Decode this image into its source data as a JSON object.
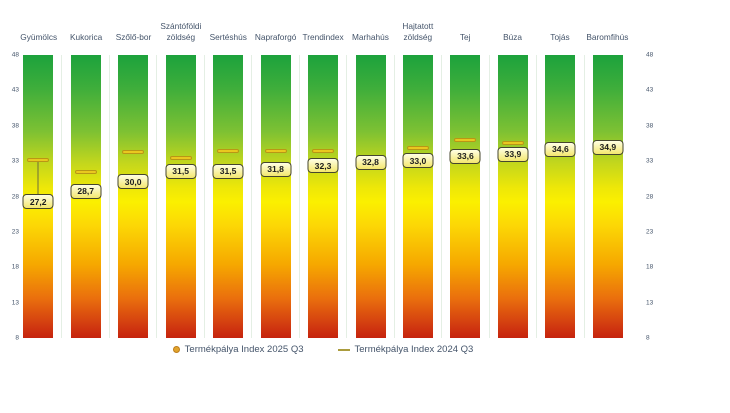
{
  "legend": {
    "item_2025": "Termékpálya Index 2025 Q3",
    "item_2024": "Termékpálya Index 2024 Q3"
  },
  "colors": {
    "text": "#44546a",
    "bar_gradient_top_green": "#1ca23c",
    "bar_gradient_mid_yellow": "#fbf000",
    "bar_gradient_bottom_red": "#c6230e",
    "marker_2025_dot": "#e2a42c",
    "marker_2024_dash": "#e9c81f",
    "value_label_fill": "#f8ef9a",
    "value_label_border": "#45452e",
    "column_separator": "#e4efe4"
  },
  "chart_data": {
    "type": "bar",
    "title": "",
    "categories": [
      "Gyümölcs",
      "Kukorica",
      "Szőlő-bor",
      "Szántóföldi zöldség",
      "Sertéshús",
      "Napraforgó",
      "Trendindex",
      "Marhahús",
      "Hajtatott zöldség",
      "Tej",
      "Búza",
      "Tojás",
      "Baromfihús"
    ],
    "series": [
      {
        "name": "Termékpálya Index 2025 Q3",
        "marker": "dot",
        "values": [
          27.2,
          28.7,
          30.0,
          31.5,
          31.5,
          31.8,
          32.3,
          32.8,
          33.0,
          33.6,
          33.9,
          34.6,
          34.9
        ],
        "data_labels": [
          "27,2",
          "28,7",
          "30,0",
          "31,5",
          "31,5",
          "31,8",
          "32,3",
          "32,8",
          "33,0",
          "33,6",
          "33,9",
          "34,6",
          "34,9"
        ]
      },
      {
        "name": "Termékpálya Index 2024 Q3",
        "marker": "dash",
        "note": "values estimated from marker positions; null = marker hidden behind 2025 data label",
        "values": [
          33.2,
          31.5,
          34.3,
          33.5,
          34.5,
          34.5,
          34.4,
          null,
          34.8,
          36.0,
          35.6,
          null,
          null
        ]
      }
    ],
    "ylim": [
      8,
      48
    ],
    "y_ticks": [
      48,
      43,
      38,
      33,
      28,
      23,
      18,
      13,
      8
    ],
    "y_axis_sides": [
      "left",
      "right"
    ],
    "grid": "vertical category separators only",
    "legend_position": "bottom-center",
    "background_columns": "full-height gradient green(top)-yellow(middle)-red(bottom)"
  }
}
